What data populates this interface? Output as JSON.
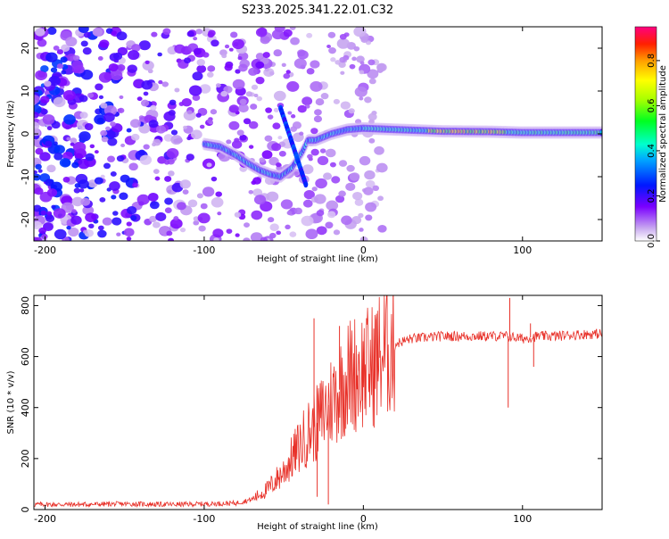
{
  "title": "S233.2025.341.22.01.C32",
  "chart_data": [
    {
      "type": "heatmap",
      "xlabel": "Height of straight line (km)",
      "ylabel": "Frequency (Hz)",
      "xlim": [
        -207,
        150
      ],
      "ylim": [
        -25,
        25
      ],
      "xticks": [
        -200,
        -100,
        0,
        100
      ],
      "yticks": [
        -20,
        -10,
        0,
        10,
        20
      ],
      "colorbar": {
        "label": "Normalized spectral amplitude",
        "range": [
          0,
          0.95
        ],
        "ticks": [
          0.0,
          0.2,
          0.4,
          0.6,
          0.8
        ]
      },
      "ridge": [
        {
          "x": -98,
          "y": -2.5
        },
        {
          "x": -90,
          "y": -3
        },
        {
          "x": -80,
          "y": -5
        },
        {
          "x": -72,
          "y": -7
        },
        {
          "x": -65,
          "y": -8.5
        },
        {
          "x": -58,
          "y": -9.5
        },
        {
          "x": -52,
          "y": -10
        },
        {
          "x": -45,
          "y": -8
        },
        {
          "x": -38,
          "y": -4
        },
        {
          "x": -35,
          "y": -1.5
        },
        {
          "x": -30,
          "y": -1.5
        },
        {
          "x": -20,
          "y": 0
        },
        {
          "x": -10,
          "y": 1
        },
        {
          "x": 0,
          "y": 1.3
        },
        {
          "x": 20,
          "y": 1
        },
        {
          "x": 50,
          "y": 0.6
        },
        {
          "x": 80,
          "y": 0.5
        },
        {
          "x": 100,
          "y": 0.3
        },
        {
          "x": 130,
          "y": 0.3
        },
        {
          "x": 150,
          "y": 0.3
        }
      ]
    },
    {
      "type": "line",
      "xlabel": "Height of straight line (km)",
      "ylabel": "SNR (10 * v/v)",
      "xlim": [
        -207,
        150
      ],
      "ylim": [
        0,
        840
      ],
      "xticks": [
        -200,
        -100,
        0,
        100
      ],
      "yticks": [
        0,
        200,
        400,
        600,
        800
      ],
      "series": [
        {
          "name": "SNR",
          "color": "#e8322a",
          "x": [
            -207,
            -180,
            -150,
            -120,
            -100,
            -80,
            -70,
            -60,
            -50,
            -45,
            -40,
            -35,
            -30,
            -25,
            -20,
            -15,
            -10,
            -5,
            0,
            5,
            10,
            15,
            20,
            30,
            40,
            50,
            60,
            70,
            80,
            90,
            100,
            110,
            120,
            130,
            150
          ],
          "y": [
            20,
            20,
            22,
            20,
            22,
            25,
            40,
            80,
            150,
            200,
            250,
            300,
            330,
            380,
            430,
            470,
            520,
            540,
            550,
            560,
            600,
            630,
            650,
            670,
            675,
            680,
            680,
            680,
            680,
            680,
            670,
            680,
            680,
            685,
            690
          ]
        }
      ],
      "spikes": [
        {
          "x": -31,
          "y": 750
        },
        {
          "x": -29,
          "y": 50
        },
        {
          "x": -22,
          "y": 20
        },
        {
          "x": -15,
          "y": 720
        },
        {
          "x": -3,
          "y": 610
        },
        {
          "x": 92,
          "y": 830
        },
        {
          "x": 91,
          "y": 400
        },
        {
          "x": 105,
          "y": 730
        },
        {
          "x": 107,
          "y": 560
        }
      ]
    }
  ]
}
